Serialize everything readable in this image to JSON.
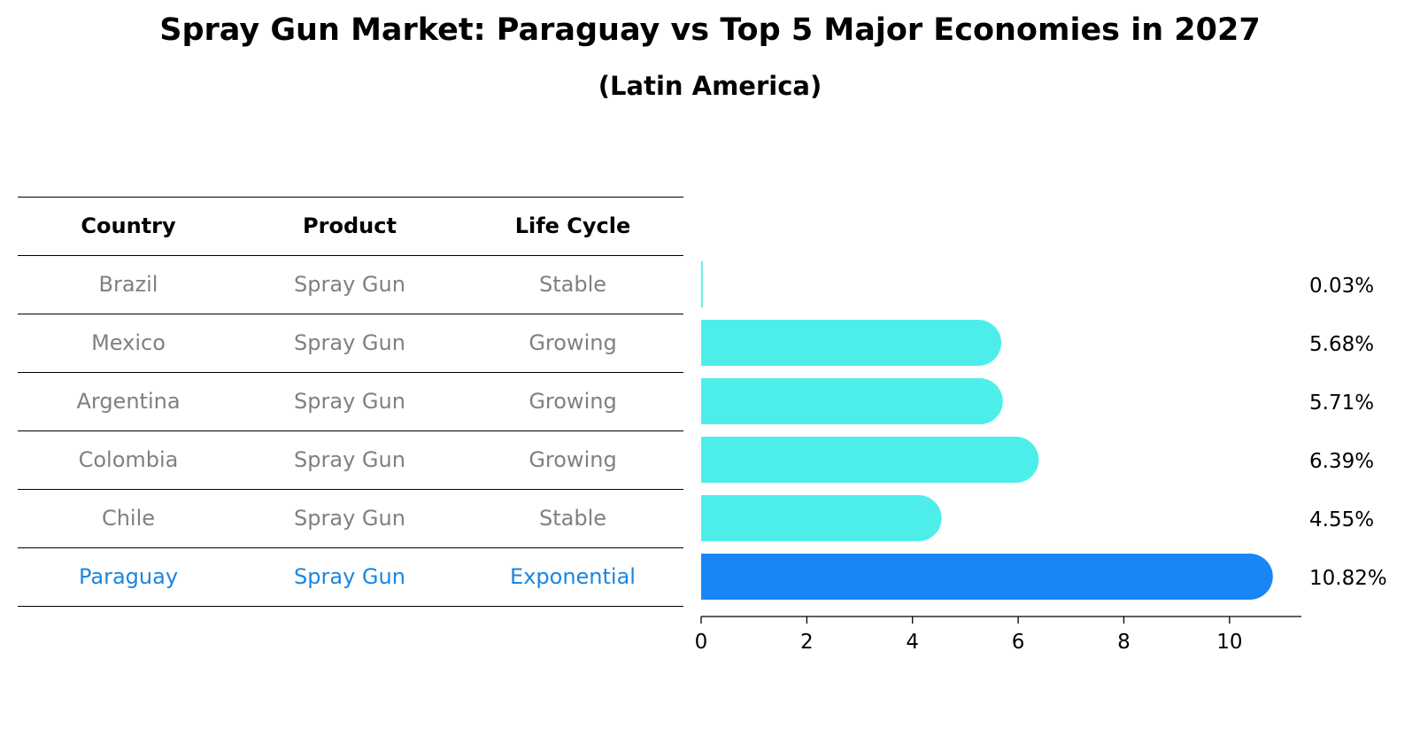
{
  "title": "Spray Gun Market: Paraguay vs Top 5 Major Economies in 2027",
  "subtitle": "(Latin America)",
  "table": {
    "headers": [
      "Country",
      "Product",
      "Life Cycle"
    ],
    "rows": [
      {
        "country": "Brazil",
        "product": "Spray Gun",
        "life_cycle": "Stable"
      },
      {
        "country": "Mexico",
        "product": "Spray Gun",
        "life_cycle": "Growing"
      },
      {
        "country": "Argentina",
        "product": "Spray Gun",
        "life_cycle": "Growing"
      },
      {
        "country": "Colombia",
        "product": "Spray Gun",
        "life_cycle": "Growing"
      },
      {
        "country": "Chile",
        "product": "Spray Gun",
        "life_cycle": "Stable"
      },
      {
        "country": "Paraguay",
        "product": "Spray Gun",
        "life_cycle": "Exponential"
      }
    ]
  },
  "chart_data": {
    "type": "bar",
    "orientation": "horizontal",
    "categories": [
      "Brazil",
      "Mexico",
      "Argentina",
      "Colombia",
      "Chile",
      "Paraguay"
    ],
    "values": [
      0.03,
      5.68,
      5.71,
      6.39,
      4.55,
      10.82
    ],
    "value_labels": [
      "0.03%",
      "5.68%",
      "5.71%",
      "6.39%",
      "4.55%",
      "10.82%"
    ],
    "highlight": "Paraguay",
    "xlim": [
      0,
      11.36
    ],
    "xticks": [
      0,
      2,
      4,
      6,
      8,
      10
    ],
    "xlabel": "",
    "ylabel": "",
    "colors": {
      "default": "#4deeea",
      "highlight": "#1a86f5"
    }
  }
}
